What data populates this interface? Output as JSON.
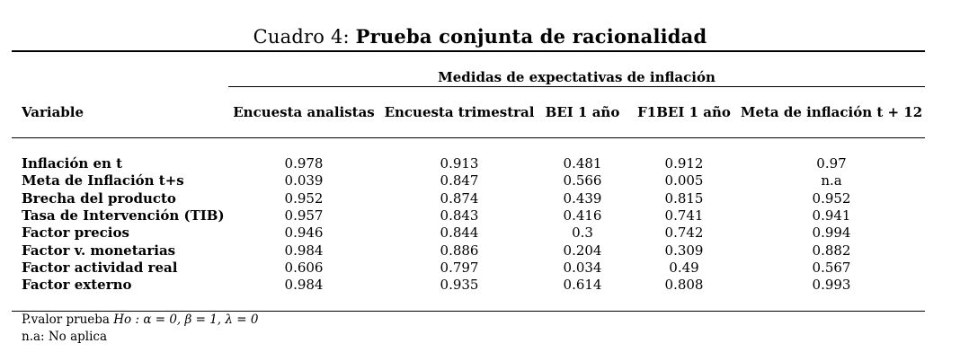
{
  "caption": {
    "label": "Cuadro 4:",
    "title": "Prueba conjunta de racionalidad"
  },
  "table": {
    "group_header": "Medidas de expectativas de inflación",
    "row_header": "Variable",
    "columns": [
      "Encuesta analistas",
      "Encuesta trimestral",
      "BEI 1 año",
      "F1BEI 1 año",
      "Meta de inflación t + 12"
    ],
    "rows": [
      {
        "label": "Inflación en t",
        "values": [
          "0.978",
          "0.913",
          "0.481",
          "0.912",
          "0.97"
        ]
      },
      {
        "label": "Meta de Inflación t+s",
        "values": [
          "0.039",
          "0.847",
          "0.566",
          "0.005",
          "n.a"
        ]
      },
      {
        "label": "Brecha del producto",
        "values": [
          "0.952",
          "0.874",
          "0.439",
          "0.815",
          "0.952"
        ]
      },
      {
        "label": "Tasa de Intervención (TIB)",
        "values": [
          "0.957",
          "0.843",
          "0.416",
          "0.741",
          "0.941"
        ]
      },
      {
        "label": "Factor precios",
        "values": [
          "0.946",
          "0.844",
          "0.3",
          "0.742",
          "0.994"
        ]
      },
      {
        "label": "Factor v. monetarias",
        "values": [
          "0.984",
          "0.886",
          "0.204",
          "0.309",
          "0.882"
        ]
      },
      {
        "label": "Factor actividad real",
        "values": [
          "0.606",
          "0.797",
          "0.034",
          "0.49",
          "0.567"
        ]
      },
      {
        "label": "Factor externo",
        "values": [
          "0.984",
          "0.935",
          "0.614",
          "0.808",
          "0.993"
        ]
      }
    ]
  },
  "notes": {
    "pvalue_prefix": "P.valor prueba",
    "pvalue_hypothesis": "Ho : α = 0, β = 1, λ = 0",
    "na": "n.a: No aplica"
  }
}
